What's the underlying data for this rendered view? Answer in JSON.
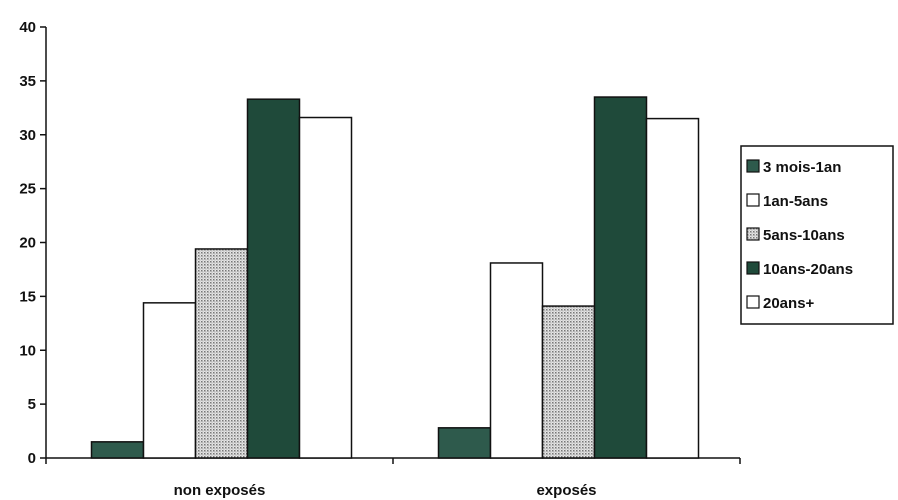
{
  "chart_data": {
    "type": "bar",
    "title": "",
    "xlabel": "",
    "ylabel": "",
    "ylim": [
      0,
      40
    ],
    "yticks": [
      0,
      5,
      10,
      15,
      20,
      25,
      30,
      35,
      40
    ],
    "categories": [
      "non exposés",
      "exposés"
    ],
    "series": [
      {
        "name": "3 mois-1an",
        "values": [
          1.5,
          2.8
        ],
        "color": "#2e5a4c",
        "pattern": "solid"
      },
      {
        "name": "1an-5ans",
        "values": [
          14.4,
          18.1
        ],
        "color": "#ffffff",
        "pattern": "solid"
      },
      {
        "name": "5ans-10ans",
        "values": [
          19.4,
          14.1
        ],
        "color": "#b8b8b8",
        "pattern": "dots"
      },
      {
        "name": "10ans-20ans",
        "values": [
          33.3,
          33.5
        ],
        "color": "#1f4a3a",
        "pattern": "solid"
      },
      {
        "name": "20ans+",
        "values": [
          31.6,
          31.5
        ],
        "color": "#ffffff",
        "pattern": "solid"
      }
    ],
    "grid": false,
    "legend_position": "right"
  }
}
